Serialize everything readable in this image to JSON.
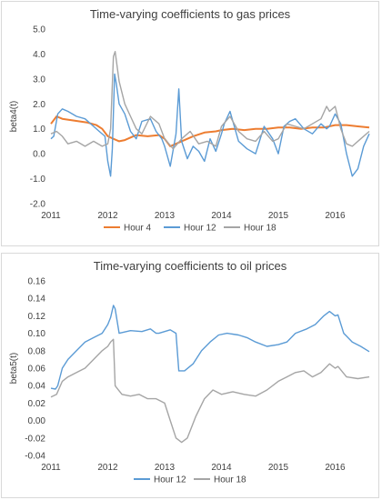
{
  "chart_data": [
    {
      "type": "line",
      "title": "Time-varying coefficients to gas prices",
      "xlabel": "",
      "ylabel": "beta4(t)",
      "ylim": [
        -2.0,
        5.0
      ],
      "yticks": [
        "5.0",
        "4.0",
        "3.0",
        "2.0",
        "1.0",
        "0.0",
        "-1.0",
        "-2.0"
      ],
      "xlim": [
        2011,
        2016.6
      ],
      "xticks": [
        "2011",
        "2012",
        "2013",
        "2014",
        "2015",
        "2016"
      ],
      "grid": false,
      "legend_position": "bottom",
      "series": [
        {
          "name": "Hour 4",
          "color": "#ed7d31",
          "x": [
            2011.0,
            2011.1,
            2011.2,
            2011.35,
            2011.5,
            2011.65,
            2011.8,
            2011.9,
            2012.0,
            2012.1,
            2012.2,
            2012.3,
            2012.5,
            2012.7,
            2012.9,
            2013.0,
            2013.1,
            2013.3,
            2013.5,
            2013.7,
            2013.9,
            2014.0,
            2014.2,
            2014.4,
            2014.6,
            2014.8,
            2015.0,
            2015.2,
            2015.4,
            2015.6,
            2015.8,
            2016.0,
            2016.2,
            2016.4,
            2016.6
          ],
          "values": [
            1.2,
            1.5,
            1.4,
            1.35,
            1.3,
            1.25,
            1.15,
            1.0,
            0.7,
            0.6,
            0.5,
            0.55,
            0.75,
            0.7,
            0.75,
            0.6,
            0.3,
            0.5,
            0.7,
            0.85,
            0.9,
            0.95,
            1.0,
            0.95,
            1.0,
            1.0,
            1.05,
            1.05,
            1.0,
            1.05,
            1.05,
            1.15,
            1.15,
            1.1,
            1.05
          ]
        },
        {
          "name": "Hour 12",
          "color": "#5b9bd5",
          "x": [
            2011.0,
            2011.05,
            2011.12,
            2011.2,
            2011.3,
            2011.45,
            2011.6,
            2011.75,
            2011.85,
            2011.95,
            2012.0,
            2012.05,
            2012.08,
            2012.12,
            2012.15,
            2012.2,
            2012.3,
            2012.4,
            2012.5,
            2012.6,
            2012.75,
            2012.85,
            2012.95,
            2013.0,
            2013.1,
            2013.2,
            2013.25,
            2013.3,
            2013.4,
            2013.5,
            2013.6,
            2013.7,
            2013.8,
            2013.9,
            2014.0,
            2014.05,
            2014.15,
            2014.3,
            2014.45,
            2014.6,
            2014.75,
            2014.9,
            2015.0,
            2015.1,
            2015.2,
            2015.3,
            2015.45,
            2015.6,
            2015.75,
            2015.85,
            2015.9,
            2016.0,
            2016.1,
            2016.2,
            2016.3,
            2016.4,
            2016.5,
            2016.6
          ],
          "values": [
            0.6,
            0.7,
            1.6,
            1.8,
            1.7,
            1.5,
            1.4,
            1.1,
            0.9,
            0.7,
            -0.3,
            -0.9,
            0.2,
            3.2,
            2.8,
            2.0,
            1.6,
            0.9,
            0.6,
            1.3,
            1.4,
            0.9,
            0.6,
            0.3,
            -0.5,
            0.8,
            2.6,
            0.5,
            -0.2,
            0.3,
            0.1,
            -0.3,
            0.6,
            0.1,
            0.8,
            1.2,
            1.7,
            0.5,
            0.2,
            0.0,
            1.1,
            0.6,
            0.0,
            1.1,
            1.3,
            1.4,
            1.0,
            0.8,
            1.2,
            1.0,
            1.1,
            1.6,
            1.2,
            0.0,
            -0.9,
            -0.6,
            0.3,
            0.8
          ]
        },
        {
          "name": "Hour 18",
          "color": "#a5a5a5",
          "x": [
            2011.0,
            2011.1,
            2011.2,
            2011.3,
            2011.45,
            2011.6,
            2011.75,
            2011.9,
            2012.0,
            2012.05,
            2012.1,
            2012.13,
            2012.2,
            2012.3,
            2012.4,
            2012.5,
            2012.6,
            2012.75,
            2012.9,
            2013.0,
            2013.15,
            2013.3,
            2013.45,
            2013.6,
            2013.75,
            2013.9,
            2014.0,
            2014.15,
            2014.3,
            2014.45,
            2014.6,
            2014.75,
            2014.9,
            2015.0,
            2015.15,
            2015.3,
            2015.45,
            2015.6,
            2015.75,
            2015.85,
            2015.9,
            2016.0,
            2016.1,
            2016.2,
            2016.3,
            2016.45,
            2016.6
          ],
          "values": [
            0.8,
            0.9,
            0.7,
            0.4,
            0.5,
            0.3,
            0.5,
            0.3,
            0.4,
            1.0,
            3.9,
            4.1,
            2.9,
            2.0,
            1.5,
            1.0,
            0.8,
            1.5,
            1.2,
            0.6,
            0.2,
            0.6,
            0.9,
            0.4,
            0.5,
            0.3,
            1.1,
            1.5,
            0.9,
            0.6,
            0.5,
            0.9,
            0.5,
            0.6,
            1.2,
            1.1,
            1.0,
            1.2,
            1.4,
            1.9,
            1.7,
            1.9,
            1.0,
            0.4,
            0.3,
            0.6,
            0.9
          ]
        }
      ]
    },
    {
      "type": "line",
      "title": "Time-varying coefficients to oil prices",
      "xlabel": "",
      "ylabel": "beta5(t)",
      "ylim": [
        -0.04,
        0.16
      ],
      "yticks": [
        "0.16",
        "0.14",
        "0.12",
        "0.10",
        "0.08",
        "0.06",
        "0.04",
        "0.02",
        "0.00",
        "-0.02",
        "-0.04"
      ],
      "xlim": [
        2011,
        2016.6
      ],
      "xticks": [
        "2011",
        "2012",
        "2013",
        "2014",
        "2015",
        "2016"
      ],
      "grid": false,
      "legend_position": "bottom",
      "series": [
        {
          "name": "Hour 12",
          "color": "#5b9bd5",
          "x": [
            2011.0,
            2011.08,
            2011.12,
            2011.2,
            2011.3,
            2011.45,
            2011.6,
            2011.75,
            2011.9,
            2012.0,
            2012.05,
            2012.1,
            2012.13,
            2012.2,
            2012.4,
            2012.6,
            2012.75,
            2012.85,
            2012.9,
            2013.0,
            2013.1,
            2013.2,
            2013.25,
            2013.35,
            2013.5,
            2013.65,
            2013.8,
            2013.95,
            2014.1,
            2014.3,
            2014.45,
            2014.6,
            2014.8,
            2015.0,
            2015.15,
            2015.3,
            2015.5,
            2015.65,
            2015.8,
            2015.9,
            2016.0,
            2016.05,
            2016.15,
            2016.3,
            2016.45,
            2016.6
          ],
          "values": [
            0.037,
            0.036,
            0.04,
            0.06,
            0.07,
            0.08,
            0.09,
            0.095,
            0.1,
            0.11,
            0.118,
            0.132,
            0.128,
            0.1,
            0.103,
            0.102,
            0.105,
            0.1,
            0.1,
            0.102,
            0.104,
            0.1,
            0.057,
            0.057,
            0.065,
            0.08,
            0.09,
            0.098,
            0.1,
            0.098,
            0.095,
            0.09,
            0.085,
            0.087,
            0.09,
            0.1,
            0.105,
            0.11,
            0.12,
            0.125,
            0.12,
            0.121,
            0.1,
            0.09,
            0.085,
            0.079
          ]
        },
        {
          "name": "Hour 18",
          "color": "#a5a5a5",
          "x": [
            2011.0,
            2011.1,
            2011.2,
            2011.3,
            2011.45,
            2011.6,
            2011.75,
            2011.9,
            2012.0,
            2012.05,
            2012.1,
            2012.13,
            2012.15,
            2012.25,
            2012.4,
            2012.55,
            2012.7,
            2012.85,
            2013.0,
            2013.1,
            2013.2,
            2013.3,
            2013.4,
            2013.55,
            2013.7,
            2013.85,
            2014.0,
            2014.2,
            2014.4,
            2014.6,
            2014.8,
            2015.0,
            2015.15,
            2015.3,
            2015.45,
            2015.6,
            2015.75,
            2015.9,
            2016.0,
            2016.05,
            2016.2,
            2016.4,
            2016.6
          ],
          "values": [
            0.027,
            0.03,
            0.045,
            0.05,
            0.055,
            0.06,
            0.07,
            0.08,
            0.085,
            0.09,
            0.093,
            0.04,
            0.038,
            0.03,
            0.028,
            0.03,
            0.025,
            0.025,
            0.02,
            0.0,
            -0.02,
            -0.025,
            -0.02,
            0.005,
            0.025,
            0.035,
            0.03,
            0.033,
            0.03,
            0.028,
            0.035,
            0.045,
            0.05,
            0.055,
            0.057,
            0.05,
            0.055,
            0.065,
            0.06,
            0.062,
            0.05,
            0.048,
            0.05
          ]
        }
      ]
    }
  ]
}
